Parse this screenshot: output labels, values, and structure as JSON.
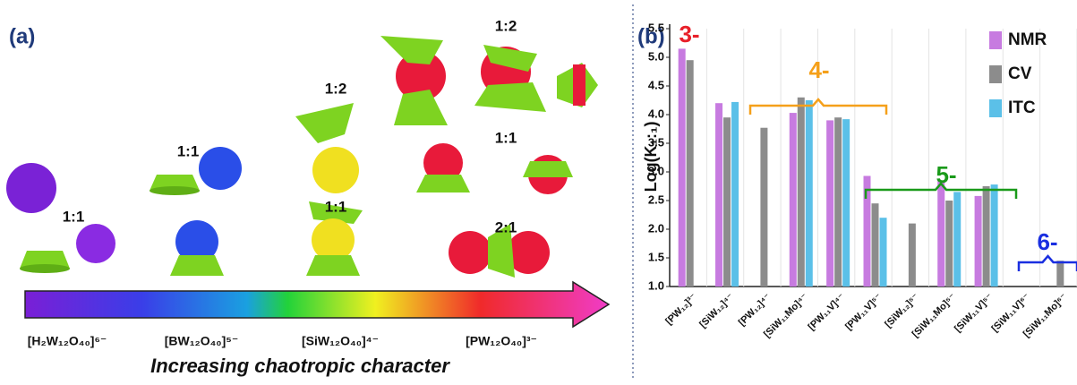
{
  "panel_a": {
    "label": "(a)",
    "ratios": [
      "1:1",
      "1:1",
      "1:2",
      "1:1",
      "1:2",
      "1:1",
      "2:1"
    ],
    "formulas": [
      "[H₂W₁₂O₄₀]⁶⁻",
      "[BW₁₂O₄₀]⁵⁻",
      "[SiW₁₂O₄₀]⁴⁻",
      "[PW₁₂O₄₀]³⁻"
    ],
    "arrow_label": "Increasing chaotropic character"
  },
  "chart_data": {
    "type": "bar",
    "panel_label": "(b)",
    "y_label": "Log(K₁:₁)",
    "categories": [
      "[PW₁₂]³⁻",
      "[SiW₁₂]⁴⁻",
      "[PW₁₂]⁴⁻",
      "[SiW₁₁Mo]⁴⁻",
      "[PW₁₁V]⁴⁻",
      "[PW₁₁V]⁵⁻",
      "[SiW₁₂]⁵⁻",
      "[SiW₁₁Mo]⁵⁻",
      "[SiW₁₁V]⁵⁻",
      "[SiW₁₁V]⁶⁻",
      "[SiW₁₁Mo]⁶⁻"
    ],
    "series": [
      {
        "name": "NMR",
        "color": "#c77be0",
        "values": [
          5.15,
          4.2,
          null,
          4.03,
          3.9,
          2.93,
          null,
          2.85,
          2.58,
          null,
          null
        ]
      },
      {
        "name": "CV",
        "color": "#8c8c8c",
        "values": [
          4.95,
          3.95,
          3.77,
          4.3,
          3.95,
          2.45,
          2.1,
          2.5,
          2.75,
          null,
          1.45
        ]
      },
      {
        "name": "ITC",
        "color": "#5bc0e8",
        "values": [
          null,
          4.22,
          null,
          4.25,
          3.92,
          2.2,
          null,
          2.65,
          2.78,
          null,
          null
        ]
      }
    ],
    "ylim": [
      1.0,
      5.5
    ],
    "yticks": [
      {
        "value": 1.0,
        "label": "1.0"
      },
      1.5,
      {
        "value": 2.0,
        "label": "2.0"
      },
      2.5,
      {
        "value": 3.0,
        "label": "3.0"
      },
      3.5,
      {
        "value": 4.0,
        "label": "4.0"
      },
      4.5,
      {
        "value": 5.0,
        "label": "5.0"
      },
      5.5
    ],
    "annotations": [
      {
        "text": "3-",
        "color": "#e8202a"
      },
      {
        "text": "4-",
        "color": "#f5a01a"
      },
      {
        "text": "5-",
        "color": "#1a9a1a"
      },
      {
        "text": "6-",
        "color": "#1a2fe0"
      }
    ]
  }
}
